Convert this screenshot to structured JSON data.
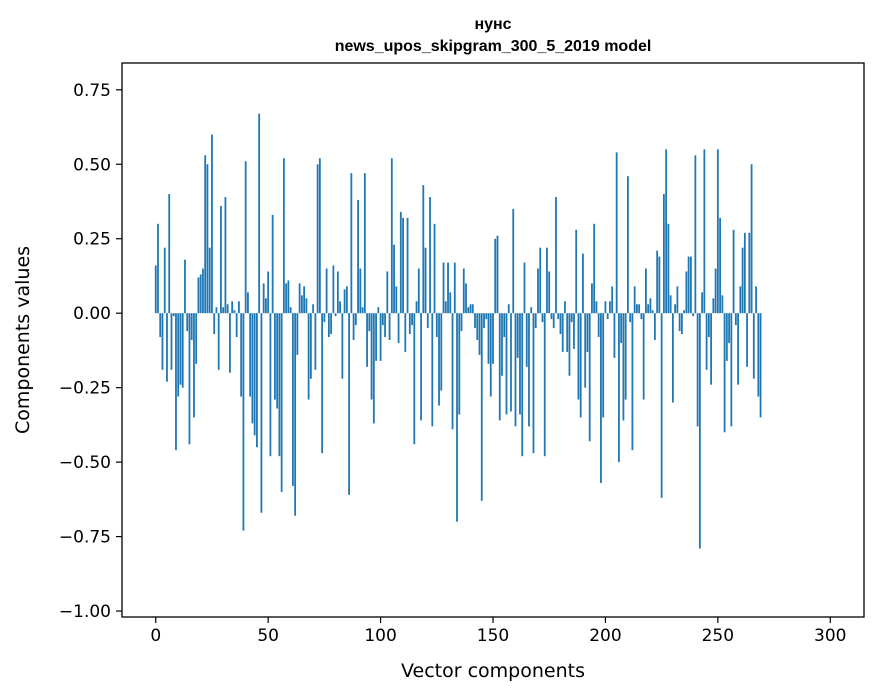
{
  "chart_data": {
    "type": "bar",
    "title": "нунс",
    "subtitle": "news_upos_skipgram_300_5_2019 model",
    "xlabel": "Vector components",
    "ylabel": "Components values",
    "xlim": [
      -15,
      315
    ],
    "ylim": [
      -1.02,
      0.84
    ],
    "xticks": [
      0,
      50,
      100,
      150,
      200,
      250,
      300
    ],
    "yticks": [
      -1.0,
      -0.75,
      -0.5,
      -0.25,
      0.0,
      0.25,
      0.5,
      0.75
    ],
    "ytick_labels": [
      "−1.00",
      "−0.75",
      "−0.50",
      "−0.25",
      "0.00",
      "0.25",
      "0.50",
      "0.75"
    ],
    "grid": false,
    "bar_color": "#1f77b4",
    "values": [
      0.16,
      0.3,
      -0.08,
      -0.19,
      0.22,
      -0.23,
      0.4,
      -0.19,
      -0.01,
      -0.46,
      -0.28,
      -0.24,
      -0.25,
      0.18,
      -0.06,
      -0.44,
      -0.09,
      -0.35,
      -0.17,
      0.12,
      0.13,
      0.15,
      0.53,
      0.5,
      0.22,
      0.6,
      -0.07,
      0.02,
      -0.19,
      0.36,
      0.02,
      0.39,
      0.03,
      -0.2,
      0.04,
      0.01,
      -0.08,
      0.04,
      -0.28,
      -0.73,
      0.51,
      0.07,
      -0.28,
      -0.37,
      -0.41,
      -0.45,
      0.67,
      -0.67,
      0.1,
      0.05,
      0.14,
      -0.48,
      0.33,
      -0.29,
      -0.32,
      -0.48,
      -0.6,
      0.52,
      0.1,
      0.11,
      0.02,
      -0.58,
      -0.68,
      -0.14,
      0.1,
      0.06,
      0.09,
      0.05,
      -0.29,
      -0.22,
      0.03,
      -0.19,
      0.5,
      0.52,
      -0.47,
      -0.03,
      0.15,
      -0.08,
      -0.07,
      0.16,
      -0.01,
      0.14,
      0.04,
      -0.22,
      0.08,
      0.09,
      -0.61,
      0.47,
      -0.09,
      -0.04,
      0.38,
      0.15,
      0.02,
      0.47,
      -0.18,
      -0.06,
      -0.29,
      -0.37,
      -0.16,
      0.02,
      -0.16,
      -0.04,
      -0.08,
      0.14,
      -0.09,
      0.52,
      0.23,
      0.09,
      -0.1,
      0.34,
      0.32,
      -0.13,
      0.32,
      -0.07,
      -0.04,
      -0.44,
      0.04,
      0.15,
      -0.36,
      0.43,
      0.22,
      -0.05,
      0.39,
      -0.38,
      0.3,
      -0.08,
      -0.31,
      -0.26,
      0.17,
      0.04,
      0.17,
      0.07,
      -0.39,
      0.17,
      -0.7,
      -0.34,
      -0.06,
      0.15,
      0.1,
      0.02,
      0.03,
      0.03,
      -0.05,
      -0.09,
      -0.14,
      -0.63,
      -0.05,
      -0.02,
      -0.17,
      -0.28,
      -0.17,
      0.25,
      0.26,
      -0.36,
      -0.21,
      -0.08,
      -0.34,
      0.03,
      -0.33,
      0.35,
      -0.38,
      -0.15,
      -0.34,
      -0.48,
      0.17,
      -0.18,
      -0.38,
      0.02,
      -0.47,
      -0.05,
      0.15,
      0.22,
      -0.03,
      -0.48,
      0.22,
      0.14,
      -0.02,
      -0.05,
      0.39,
      -0.02,
      -0.07,
      -0.13,
      0.04,
      -0.13,
      -0.21,
      -0.03,
      -0.12,
      0.28,
      -0.29,
      -0.35,
      0.2,
      -0.25,
      -0.13,
      -0.43,
      0.1,
      0.3,
      0.04,
      -0.08,
      -0.57,
      -0.35,
      0.04,
      -0.02,
      0.04,
      0.09,
      -0.15,
      0.54,
      -0.5,
      -0.1,
      -0.36,
      -0.29,
      0.46,
      -0.03,
      -0.46,
      0.09,
      0.03,
      0.03,
      -0.02,
      -0.29,
      0.15,
      0.03,
      0.05,
      0.01,
      -0.09,
      0.21,
      0.19,
      -0.62,
      0.4,
      0.55,
      0.3,
      0.06,
      -0.3,
      0.03,
      0.09,
      -0.06,
      -0.07,
      0.01,
      0.14,
      0.19,
      0.19,
      -0.01,
      0.53,
      -0.38,
      -0.79,
      0.07,
      0.55,
      -0.19,
      -0.08,
      -0.24,
      0.05,
      0.15,
      0.55,
      0.32,
      0.06,
      -0.4,
      -0.16,
      -0.1,
      -0.38,
      0.28,
      -0.04,
      -0.24,
      0.09,
      0.22,
      0.27,
      -0.18,
      0.27,
      0.5,
      -0.22,
      0.09,
      -0.28,
      -0.35
    ]
  }
}
